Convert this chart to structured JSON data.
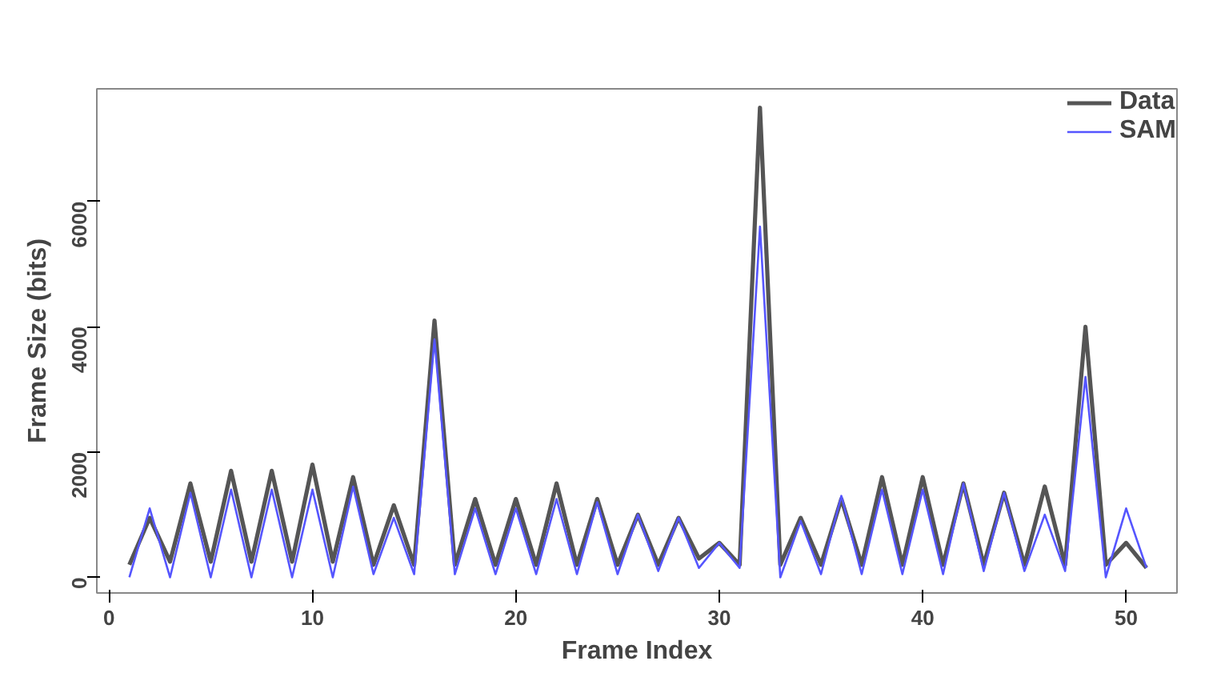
{
  "chart_data": {
    "type": "line",
    "xlabel": "Frame Index",
    "ylabel": "Frame Size (bits)",
    "x": [
      1,
      2,
      3,
      4,
      5,
      6,
      7,
      8,
      9,
      10,
      11,
      12,
      13,
      14,
      15,
      16,
      17,
      18,
      19,
      20,
      21,
      22,
      23,
      24,
      25,
      26,
      27,
      28,
      29,
      30,
      31,
      32,
      33,
      34,
      35,
      36,
      37,
      38,
      39,
      40,
      41,
      42,
      43,
      44,
      45,
      46,
      47,
      48,
      49,
      50,
      51
    ],
    "series": [
      {
        "name": "Data",
        "color": "#555555",
        "values": [
          200,
          950,
          250,
          1500,
          250,
          1700,
          250,
          1700,
          250,
          1800,
          250,
          1600,
          200,
          1150,
          200,
          4100,
          200,
          1250,
          200,
          1250,
          200,
          1500,
          200,
          1250,
          200,
          1000,
          200,
          950,
          300,
          550,
          200,
          7500,
          200,
          950,
          200,
          1250,
          200,
          1600,
          200,
          1600,
          200,
          1500,
          200,
          1350,
          200,
          1450,
          200,
          4000,
          200,
          550,
          150
        ]
      },
      {
        "name": "SAM",
        "color": "#5555ff",
        "values": [
          0,
          1100,
          0,
          1350,
          0,
          1400,
          0,
          1400,
          0,
          1400,
          0,
          1450,
          50,
          950,
          50,
          3800,
          50,
          1100,
          50,
          1100,
          50,
          1250,
          50,
          1200,
          50,
          1000,
          100,
          950,
          150,
          550,
          150,
          5600,
          0,
          900,
          50,
          1300,
          50,
          1400,
          50,
          1400,
          50,
          1500,
          100,
          1350,
          100,
          1000,
          100,
          3200,
          0,
          1100,
          150
        ]
      }
    ],
    "xlim": [
      -0.6,
      52.5
    ],
    "ylim": [
      -250,
      7800
    ],
    "xticks": [
      0,
      10,
      20,
      30,
      40,
      50
    ],
    "yticks": [
      0,
      2000,
      4000,
      6000
    ],
    "grid": false,
    "legend": "top right",
    "marker": "none",
    "line_style": "solid"
  }
}
